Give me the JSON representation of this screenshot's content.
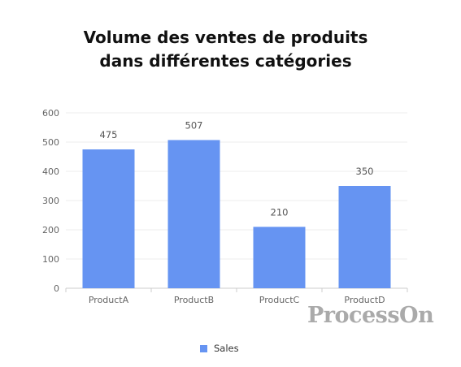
{
  "chart_data": {
    "type": "bar",
    "title_line1": "Volume des ventes de produits",
    "title_line2": "dans différentes catégories",
    "xlabel": "",
    "ylabel": "",
    "categories": [
      "ProductA",
      "ProductB",
      "ProductC",
      "ProductD"
    ],
    "series": [
      {
        "name": "Sales",
        "values": [
          475,
          507,
          210,
          350
        ],
        "color": "#6694f2"
      }
    ],
    "ylim": [
      0,
      600
    ],
    "yticks": [
      0,
      100,
      200,
      300,
      400,
      500,
      600
    ],
    "grid": true,
    "legend": "bottom"
  },
  "watermark": "ProcessOn"
}
